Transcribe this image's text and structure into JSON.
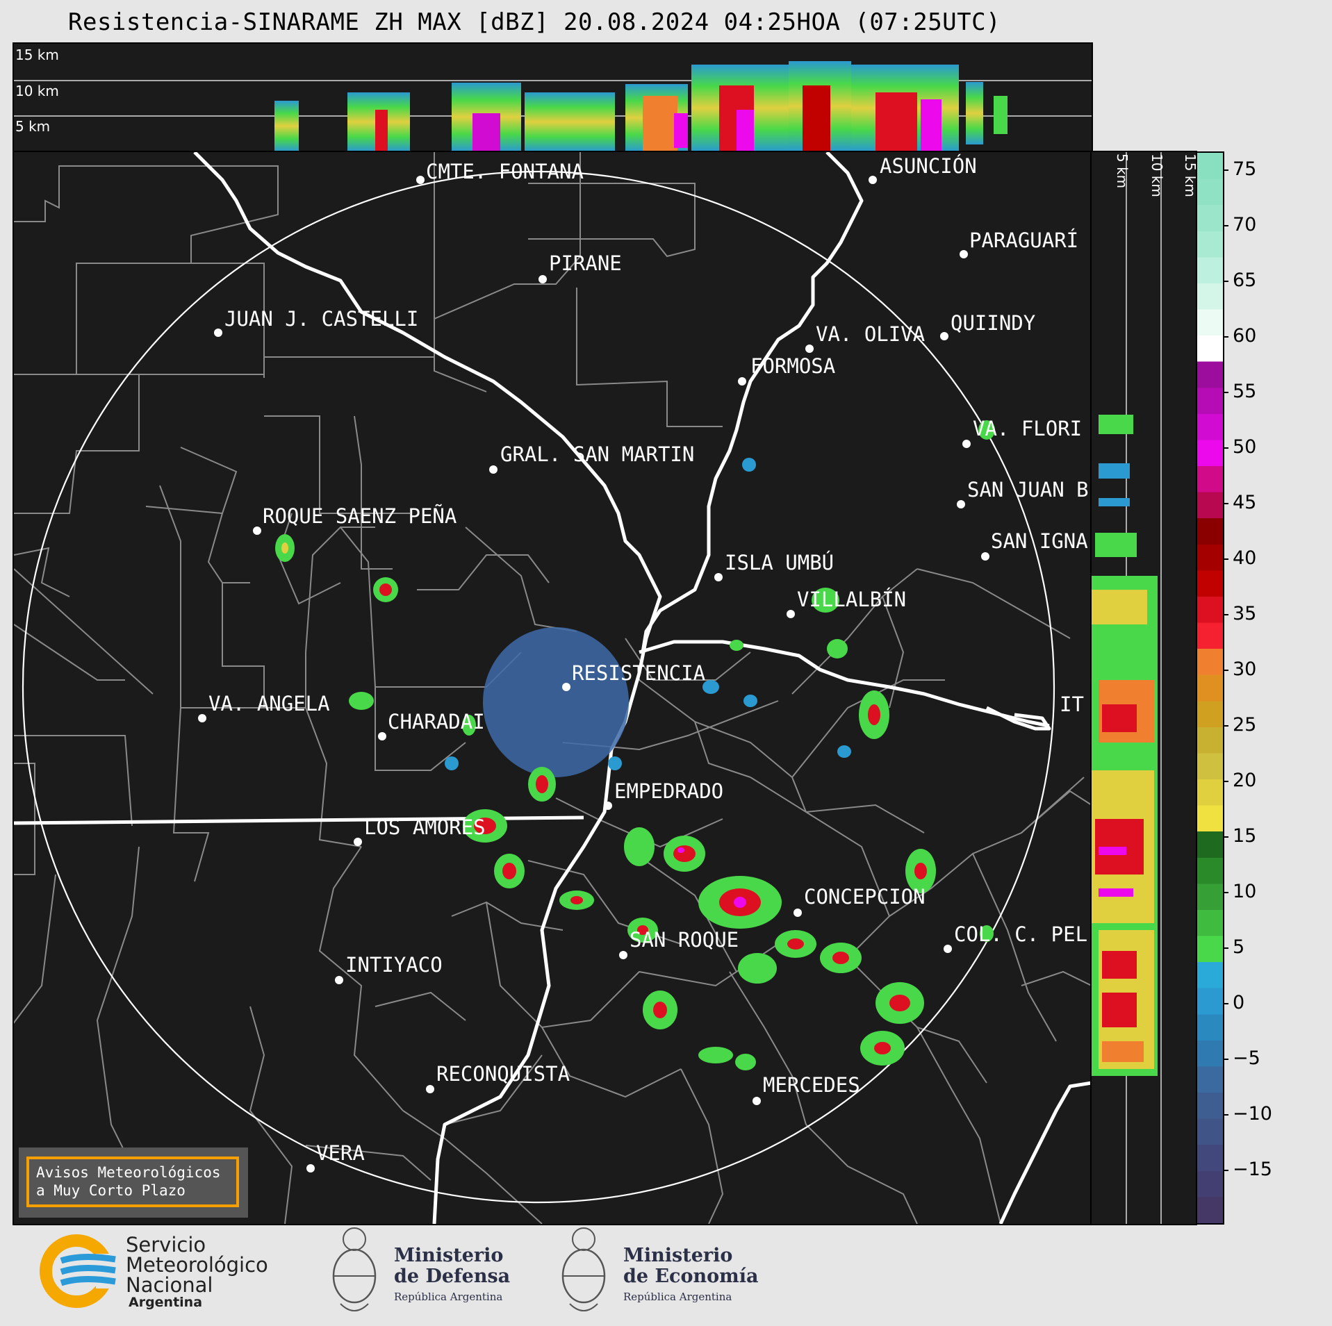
{
  "title": "Resistencia-SINARAME ZH MAX [dBZ] 20.08.2024 04:25HOA (07:25UTC)",
  "top_section": {
    "labels": [
      "15 km",
      "10 km",
      "5 km"
    ]
  },
  "side_section": {
    "labels": [
      "5 km",
      "10 km",
      "15 km"
    ]
  },
  "colorbar": {
    "ticks": [
      "75",
      "70",
      "65",
      "60",
      "55",
      "50",
      "45",
      "40",
      "35",
      "30",
      "25",
      "20",
      "15",
      "10",
      "5",
      "0",
      "−5",
      "−10",
      "−15"
    ],
    "stops": [
      "#89e0c0",
      "#8fe2c4",
      "#9be6cb",
      "#a9ead3",
      "#bdf0de",
      "#d4f6e9",
      "#ecfbf4",
      "#ffffff",
      "#9c0d9e",
      "#b60cb6",
      "#d10bd1",
      "#ec0aec",
      "#d10a8a",
      "#b8084f",
      "#8a0000",
      "#a50000",
      "#c10000",
      "#dc1020",
      "#f52030",
      "#f08030",
      "#e09020",
      "#d0a020",
      "#c8b030",
      "#d0c040",
      "#e0d040",
      "#f0e040",
      "#1e6a1e",
      "#2a8a2a",
      "#36a036",
      "#3fbc3f",
      "#49d849",
      "#2aaad8",
      "#2a9ad0",
      "#2a8ac0",
      "#2f7ab0",
      "#3a6aa0",
      "#3e5e92",
      "#405488",
      "#42487c",
      "#443f72",
      "#463866"
    ]
  },
  "cities": [
    {
      "name": "CMTE. FONTANA"
    },
    {
      "name": "ASUNCIÓN"
    },
    {
      "name": "PIRANE"
    },
    {
      "name": "PARAGUARÍ"
    },
    {
      "name": "JUAN J. CASTELLI"
    },
    {
      "name": "VA. OLIVA"
    },
    {
      "name": "QUIINDY"
    },
    {
      "name": "FORMOSA"
    },
    {
      "name": "VA. FLORI"
    },
    {
      "name": "GRAL. SAN MARTIN"
    },
    {
      "name": "SAN JUAN B"
    },
    {
      "name": "ROQUE SAENZ PEÑA"
    },
    {
      "name": "SAN IGNA"
    },
    {
      "name": "ISLA UMBÚ"
    },
    {
      "name": "VILLALBÍN"
    },
    {
      "name": "RESISTENCIA"
    },
    {
      "name": "VA. ANGELA"
    },
    {
      "name": "CHARADAI"
    },
    {
      "name": "IT"
    },
    {
      "name": "EMPEDRADO"
    },
    {
      "name": "LOS AMORES"
    },
    {
      "name": "CONCEPCION"
    },
    {
      "name": "SAN ROQUE"
    },
    {
      "name": "COL. C. PEL"
    },
    {
      "name": "INTIYACO"
    },
    {
      "name": "RECONQUISTA"
    },
    {
      "name": "MERCEDES"
    },
    {
      "name": "VERA"
    }
  ],
  "warning_box": {
    "line1": "Avisos Meteorológicos",
    "line2": "a Muy Corto Plazo"
  },
  "footer": {
    "smn": {
      "line1": "Servicio",
      "line2": "Meteorológico",
      "line3": "Nacional",
      "line4": "Argentina"
    },
    "defensa": {
      "line1": "Ministerio",
      "line2": "de Defensa",
      "line3": "República Argentina"
    },
    "economia": {
      "line1": "Ministerio",
      "line2": "de Economía",
      "line3": "República Argentina"
    }
  }
}
